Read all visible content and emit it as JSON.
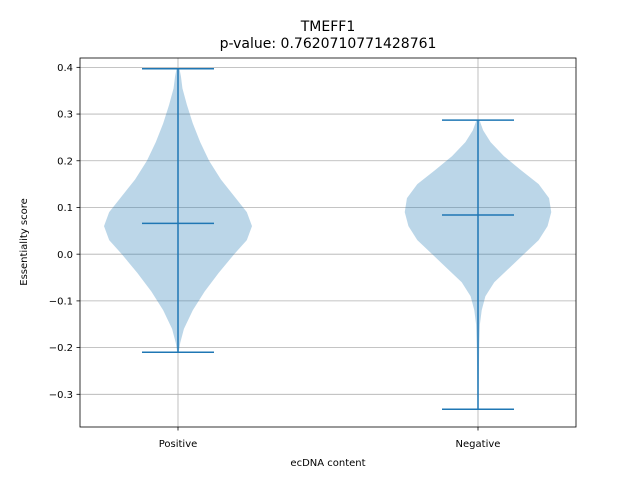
{
  "chart_data": {
    "type": "violin",
    "title": "TMEFF1",
    "subtitle": "p-value: 0.7620710771428761",
    "xlabel": "ecDNA content",
    "ylabel": "Essentiality score",
    "categories": [
      "Positive",
      "Negative"
    ],
    "ylim": [
      -0.37,
      0.42
    ],
    "yticks": [
      -0.3,
      -0.2,
      -0.1,
      0.0,
      0.1,
      0.2,
      0.3,
      0.4
    ],
    "ytick_labels": [
      "−0.3",
      "−0.2",
      "−0.1",
      "0.0",
      "0.1",
      "0.2",
      "0.3",
      "0.4"
    ],
    "grid": true,
    "colors": {
      "body": "#1f77b4",
      "body_alpha": 0.3,
      "lines": "#1f77b4",
      "grid": "#b0b0b0"
    },
    "series": [
      {
        "category": "Positive",
        "max": 0.397,
        "median": 0.066,
        "min": -0.21,
        "density": [
          [
            -0.21,
            0.01
          ],
          [
            -0.19,
            0.03
          ],
          [
            -0.16,
            0.08
          ],
          [
            -0.12,
            0.2
          ],
          [
            -0.08,
            0.36
          ],
          [
            -0.04,
            0.55
          ],
          [
            0.0,
            0.76
          ],
          [
            0.03,
            0.93
          ],
          [
            0.06,
            1.0
          ],
          [
            0.09,
            0.93
          ],
          [
            0.12,
            0.78
          ],
          [
            0.16,
            0.58
          ],
          [
            0.2,
            0.42
          ],
          [
            0.24,
            0.3
          ],
          [
            0.28,
            0.2
          ],
          [
            0.32,
            0.12
          ],
          [
            0.355,
            0.06
          ],
          [
            0.38,
            0.04
          ],
          [
            0.397,
            0.02
          ]
        ]
      },
      {
        "category": "Negative",
        "max": 0.287,
        "median": 0.084,
        "min": -0.332,
        "density": [
          [
            -0.332,
            0.006
          ],
          [
            -0.3,
            0.008
          ],
          [
            -0.25,
            0.012
          ],
          [
            -0.2,
            0.016
          ],
          [
            -0.15,
            0.026
          ],
          [
            -0.12,
            0.05
          ],
          [
            -0.09,
            0.1
          ],
          [
            -0.06,
            0.22
          ],
          [
            -0.03,
            0.42
          ],
          [
            0.0,
            0.62
          ],
          [
            0.03,
            0.82
          ],
          [
            0.06,
            0.94
          ],
          [
            0.09,
            0.99
          ],
          [
            0.12,
            0.96
          ],
          [
            0.15,
            0.82
          ],
          [
            0.18,
            0.58
          ],
          [
            0.21,
            0.35
          ],
          [
            0.24,
            0.17
          ],
          [
            0.265,
            0.07
          ],
          [
            0.287,
            0.02
          ]
        ]
      }
    ]
  }
}
